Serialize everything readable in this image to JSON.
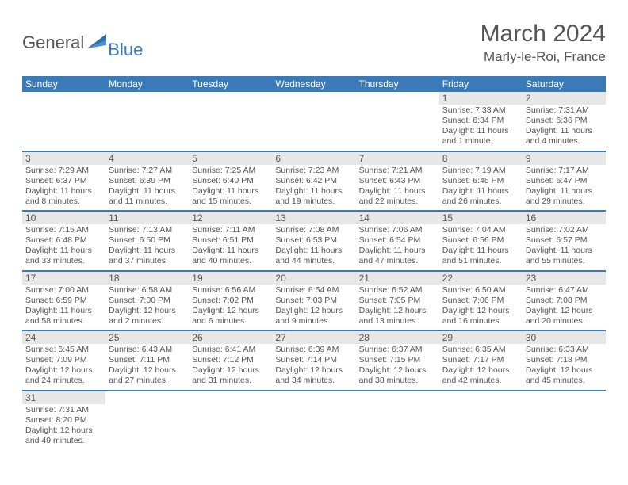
{
  "logo": {
    "general": "General",
    "blue": "Blue"
  },
  "title": "March 2024",
  "location": "Marly-le-Roi, France",
  "colors": {
    "header_bg": "#3a7ab8",
    "header_text": "#ffffff",
    "daynum_bg": "#e7e7e7",
    "border": "#3a7ab8",
    "text": "#555555",
    "background": "#ffffff"
  },
  "weekdays": [
    "Sunday",
    "Monday",
    "Tuesday",
    "Wednesday",
    "Thursday",
    "Friday",
    "Saturday"
  ],
  "weeks": [
    [
      {
        "empty": true
      },
      {
        "empty": true
      },
      {
        "empty": true
      },
      {
        "empty": true
      },
      {
        "empty": true
      },
      {
        "num": "1",
        "sunrise": "Sunrise: 7:33 AM",
        "sunset": "Sunset: 6:34 PM",
        "daylight": "Daylight: 11 hours and 1 minute."
      },
      {
        "num": "2",
        "sunrise": "Sunrise: 7:31 AM",
        "sunset": "Sunset: 6:36 PM",
        "daylight": "Daylight: 11 hours and 4 minutes."
      }
    ],
    [
      {
        "num": "3",
        "sunrise": "Sunrise: 7:29 AM",
        "sunset": "Sunset: 6:37 PM",
        "daylight": "Daylight: 11 hours and 8 minutes."
      },
      {
        "num": "4",
        "sunrise": "Sunrise: 7:27 AM",
        "sunset": "Sunset: 6:39 PM",
        "daylight": "Daylight: 11 hours and 11 minutes."
      },
      {
        "num": "5",
        "sunrise": "Sunrise: 7:25 AM",
        "sunset": "Sunset: 6:40 PM",
        "daylight": "Daylight: 11 hours and 15 minutes."
      },
      {
        "num": "6",
        "sunrise": "Sunrise: 7:23 AM",
        "sunset": "Sunset: 6:42 PM",
        "daylight": "Daylight: 11 hours and 19 minutes."
      },
      {
        "num": "7",
        "sunrise": "Sunrise: 7:21 AM",
        "sunset": "Sunset: 6:43 PM",
        "daylight": "Daylight: 11 hours and 22 minutes."
      },
      {
        "num": "8",
        "sunrise": "Sunrise: 7:19 AM",
        "sunset": "Sunset: 6:45 PM",
        "daylight": "Daylight: 11 hours and 26 minutes."
      },
      {
        "num": "9",
        "sunrise": "Sunrise: 7:17 AM",
        "sunset": "Sunset: 6:47 PM",
        "daylight": "Daylight: 11 hours and 29 minutes."
      }
    ],
    [
      {
        "num": "10",
        "sunrise": "Sunrise: 7:15 AM",
        "sunset": "Sunset: 6:48 PM",
        "daylight": "Daylight: 11 hours and 33 minutes."
      },
      {
        "num": "11",
        "sunrise": "Sunrise: 7:13 AM",
        "sunset": "Sunset: 6:50 PM",
        "daylight": "Daylight: 11 hours and 37 minutes."
      },
      {
        "num": "12",
        "sunrise": "Sunrise: 7:11 AM",
        "sunset": "Sunset: 6:51 PM",
        "daylight": "Daylight: 11 hours and 40 minutes."
      },
      {
        "num": "13",
        "sunrise": "Sunrise: 7:08 AM",
        "sunset": "Sunset: 6:53 PM",
        "daylight": "Daylight: 11 hours and 44 minutes."
      },
      {
        "num": "14",
        "sunrise": "Sunrise: 7:06 AM",
        "sunset": "Sunset: 6:54 PM",
        "daylight": "Daylight: 11 hours and 47 minutes."
      },
      {
        "num": "15",
        "sunrise": "Sunrise: 7:04 AM",
        "sunset": "Sunset: 6:56 PM",
        "daylight": "Daylight: 11 hours and 51 minutes."
      },
      {
        "num": "16",
        "sunrise": "Sunrise: 7:02 AM",
        "sunset": "Sunset: 6:57 PM",
        "daylight": "Daylight: 11 hours and 55 minutes."
      }
    ],
    [
      {
        "num": "17",
        "sunrise": "Sunrise: 7:00 AM",
        "sunset": "Sunset: 6:59 PM",
        "daylight": "Daylight: 11 hours and 58 minutes."
      },
      {
        "num": "18",
        "sunrise": "Sunrise: 6:58 AM",
        "sunset": "Sunset: 7:00 PM",
        "daylight": "Daylight: 12 hours and 2 minutes."
      },
      {
        "num": "19",
        "sunrise": "Sunrise: 6:56 AM",
        "sunset": "Sunset: 7:02 PM",
        "daylight": "Daylight: 12 hours and 6 minutes."
      },
      {
        "num": "20",
        "sunrise": "Sunrise: 6:54 AM",
        "sunset": "Sunset: 7:03 PM",
        "daylight": "Daylight: 12 hours and 9 minutes."
      },
      {
        "num": "21",
        "sunrise": "Sunrise: 6:52 AM",
        "sunset": "Sunset: 7:05 PM",
        "daylight": "Daylight: 12 hours and 13 minutes."
      },
      {
        "num": "22",
        "sunrise": "Sunrise: 6:50 AM",
        "sunset": "Sunset: 7:06 PM",
        "daylight": "Daylight: 12 hours and 16 minutes."
      },
      {
        "num": "23",
        "sunrise": "Sunrise: 6:47 AM",
        "sunset": "Sunset: 7:08 PM",
        "daylight": "Daylight: 12 hours and 20 minutes."
      }
    ],
    [
      {
        "num": "24",
        "sunrise": "Sunrise: 6:45 AM",
        "sunset": "Sunset: 7:09 PM",
        "daylight": "Daylight: 12 hours and 24 minutes."
      },
      {
        "num": "25",
        "sunrise": "Sunrise: 6:43 AM",
        "sunset": "Sunset: 7:11 PM",
        "daylight": "Daylight: 12 hours and 27 minutes."
      },
      {
        "num": "26",
        "sunrise": "Sunrise: 6:41 AM",
        "sunset": "Sunset: 7:12 PM",
        "daylight": "Daylight: 12 hours and 31 minutes."
      },
      {
        "num": "27",
        "sunrise": "Sunrise: 6:39 AM",
        "sunset": "Sunset: 7:14 PM",
        "daylight": "Daylight: 12 hours and 34 minutes."
      },
      {
        "num": "28",
        "sunrise": "Sunrise: 6:37 AM",
        "sunset": "Sunset: 7:15 PM",
        "daylight": "Daylight: 12 hours and 38 minutes."
      },
      {
        "num": "29",
        "sunrise": "Sunrise: 6:35 AM",
        "sunset": "Sunset: 7:17 PM",
        "daylight": "Daylight: 12 hours and 42 minutes."
      },
      {
        "num": "30",
        "sunrise": "Sunrise: 6:33 AM",
        "sunset": "Sunset: 7:18 PM",
        "daylight": "Daylight: 12 hours and 45 minutes."
      }
    ],
    [
      {
        "num": "31",
        "sunrise": "Sunrise: 7:31 AM",
        "sunset": "Sunset: 8:20 PM",
        "daylight": "Daylight: 12 hours and 49 minutes."
      },
      {
        "empty": true
      },
      {
        "empty": true
      },
      {
        "empty": true
      },
      {
        "empty": true
      },
      {
        "empty": true
      },
      {
        "empty": true
      }
    ]
  ]
}
